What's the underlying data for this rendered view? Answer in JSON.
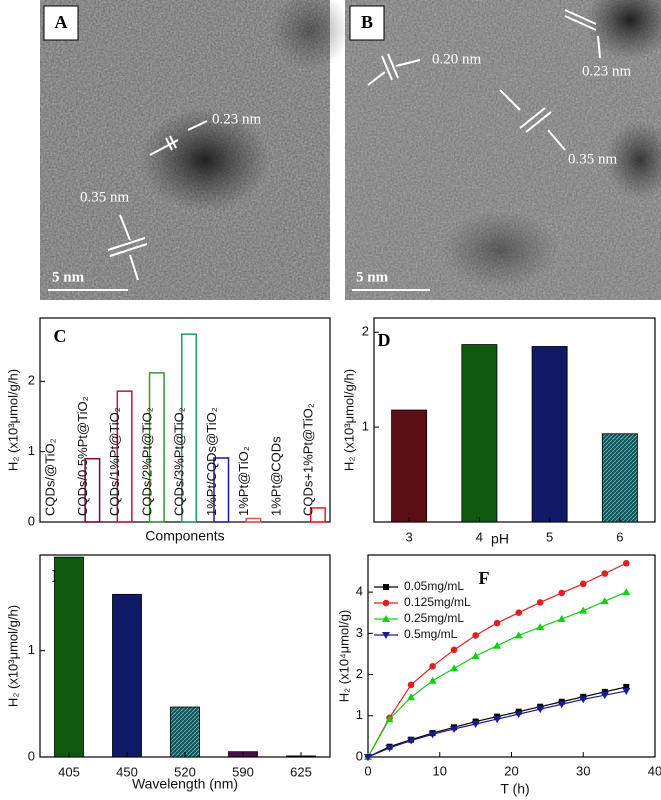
{
  "images": [
    {
      "panel": "A",
      "annotations": [
        "0.23 nm",
        "0.35 nm"
      ],
      "scale_bar": "5 nm"
    },
    {
      "panel": "B",
      "annotations": [
        "0.20 nm",
        "0.23 nm",
        "0.35 nm"
      ],
      "scale_bar": "5 nm"
    }
  ],
  "chart_data": [
    {
      "type": "bar",
      "panel": "C",
      "xlabel": "Components",
      "ylabel": "H₂ (x10³μmol/g/h)",
      "categories": [
        "CQDs/@TiO₂",
        "CQDs/0.5%Pt@TiO₂",
        "CQDs/1%Pt@TiO₂",
        "CQDs/2%Pt@TiO₂",
        "CQDs/3%Pt@TiO₂",
        "1%Pt/CQDs@TiO₂",
        "1%Pt@TiO₂",
        "1%Pt@CQDs",
        "CQDs+1%Pt@TiO₂"
      ],
      "values": [
        0,
        0.9,
        1.86,
        2.12,
        2.67,
        0.91,
        0.05,
        0,
        0.2
      ],
      "colors": [
        "#000000",
        "#800040",
        "#c0143c",
        "#2e9a2e",
        "#1f9a6a",
        "#1a1aa0",
        "#e05050",
        "#000000",
        "#e02020"
      ],
      "fill": false,
      "ylim": [
        0,
        2.9
      ],
      "yticks": [
        0,
        1,
        2
      ]
    },
    {
      "type": "bar",
      "panel": "D",
      "xlabel": "pH",
      "ylabel": "H₂ (x10³μmol/g/h)",
      "categories": [
        "3",
        "4",
        "5",
        "6"
      ],
      "values": [
        1.18,
        1.87,
        1.85,
        0.93
      ],
      "colors": [
        "#5a0f14",
        "#0f5a0f",
        "#101a66",
        "#0f5a5a"
      ],
      "fill": true,
      "ylim": [
        0,
        2.15
      ],
      "yticks": [
        1,
        2
      ]
    },
    {
      "type": "bar",
      "panel": "E",
      "xlabel": "Wavelength (nm)",
      "ylabel": "H₂ (x10³μmol/g/h)",
      "categories": [
        "405",
        "450",
        "520",
        "590",
        "625"
      ],
      "values": [
        1.88,
        1.53,
        0.47,
        0.05,
        0.01
      ],
      "colors": [
        "#0f5a0f",
        "#101a66",
        "#0f5a5a",
        "#4a0f4a",
        "#000000"
      ],
      "fill": true,
      "ylim": [
        0,
        1.9
      ],
      "yticks": [
        0,
        1
      ]
    },
    {
      "type": "line",
      "panel": "F",
      "xlabel": "T (h)",
      "ylabel": "H₂ (x10⁴μmol/g)",
      "x": [
        0,
        3,
        6,
        9,
        12,
        15,
        18,
        21,
        24,
        27,
        30,
        33,
        36
      ],
      "series": [
        {
          "name": "0.05mg/mL",
          "color": "#000000",
          "marker": "square",
          "values": [
            0,
            0.25,
            0.42,
            0.58,
            0.72,
            0.86,
            0.98,
            1.1,
            1.22,
            1.34,
            1.46,
            1.58,
            1.7
          ]
        },
        {
          "name": "0.125mg/mL",
          "color": "#e02020",
          "marker": "circle",
          "values": [
            0,
            0.95,
            1.75,
            2.2,
            2.6,
            2.95,
            3.25,
            3.5,
            3.75,
            3.98,
            4.2,
            4.45,
            4.7
          ]
        },
        {
          "name": "0.25mg/mL",
          "color": "#10d010",
          "marker": "triangle-up",
          "values": [
            0,
            0.92,
            1.45,
            1.85,
            2.15,
            2.45,
            2.7,
            2.95,
            3.15,
            3.35,
            3.55,
            3.78,
            4.0
          ]
        },
        {
          "name": "0.5mg/mL",
          "color": "#1a1a90",
          "marker": "triangle-down",
          "values": [
            0,
            0.22,
            0.4,
            0.55,
            0.68,
            0.8,
            0.92,
            1.04,
            1.16,
            1.28,
            1.4,
            1.5,
            1.6
          ]
        }
      ],
      "xlim": [
        0,
        40
      ],
      "xticks": [
        0,
        10,
        20,
        30,
        40
      ],
      "ylim": [
        0,
        4.9
      ],
      "yticks": [
        0,
        1,
        2,
        3,
        4
      ],
      "legend": "upper-left"
    }
  ]
}
